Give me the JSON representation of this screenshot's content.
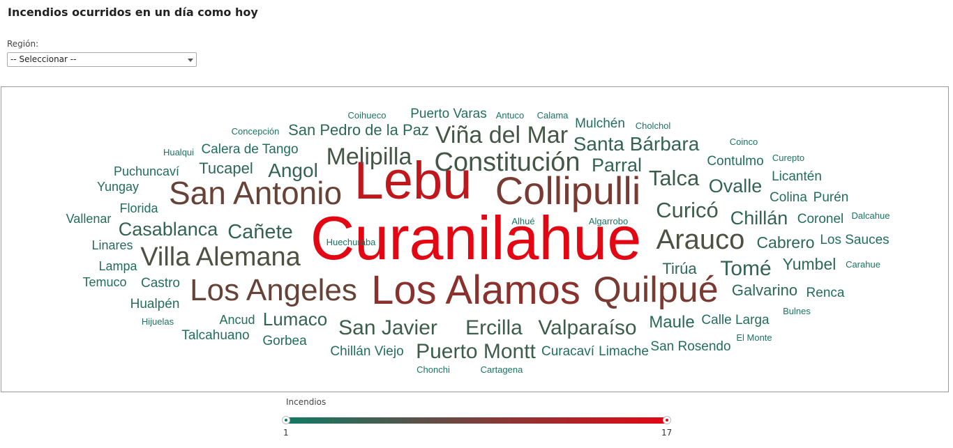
{
  "page": {
    "title": "Incendios ocurridos en un día como hoy"
  },
  "filter": {
    "label": "Región:",
    "selected": "-- Seleccionar --"
  },
  "legend": {
    "title": "Incendios",
    "min": "1",
    "max": "17",
    "color_low": "#117a65",
    "color_high": "#e30613"
  },
  "chart_data": {
    "type": "wordcloud",
    "value_range": [
      1,
      17
    ],
    "words": [
      {
        "text": "Curanilahue",
        "value": 17
      },
      {
        "text": "Lebu",
        "value": 15
      },
      {
        "text": "Los Alamos",
        "value": 12
      },
      {
        "text": "Collipulli",
        "value": 11
      },
      {
        "text": "Quilpué",
        "value": 11
      },
      {
        "text": "San Antonio",
        "value": 10
      },
      {
        "text": "Los Angeles",
        "value": 10
      },
      {
        "text": "Villa Alemana",
        "value": 8
      },
      {
        "text": "Arauco",
        "value": 8
      },
      {
        "text": "Constitución",
        "value": 7
      },
      {
        "text": "Melipilla",
        "value": 7
      },
      {
        "text": "Viña del Mar",
        "value": 7
      },
      {
        "text": "Curicó",
        "value": 6
      },
      {
        "text": "Talca",
        "value": 6
      },
      {
        "text": "Puerto Montt",
        "value": 6
      },
      {
        "text": "Valparaíso",
        "value": 6
      },
      {
        "text": "Ercilla",
        "value": 6
      },
      {
        "text": "San Javier",
        "value": 6
      },
      {
        "text": "Casablanca",
        "value": 5
      },
      {
        "text": "Cañete",
        "value": 5
      },
      {
        "text": "Tomé",
        "value": 5
      },
      {
        "text": "Chillán",
        "value": 5
      },
      {
        "text": "Ovalle",
        "value": 5
      },
      {
        "text": "Santa Bárbara",
        "value": 5
      },
      {
        "text": "Parral",
        "value": 5
      },
      {
        "text": "Angol",
        "value": 5
      },
      {
        "text": "Lumaco",
        "value": 5
      },
      {
        "text": "Maule",
        "value": 4
      },
      {
        "text": "Tirúa",
        "value": 4
      },
      {
        "text": "Yumbel",
        "value": 4
      },
      {
        "text": "Cabrero",
        "value": 4
      },
      {
        "text": "Galvarino",
        "value": 4
      },
      {
        "text": "Tucapel",
        "value": 4
      },
      {
        "text": "San Pedro de la Paz",
        "value": 4
      },
      {
        "text": "Castro",
        "value": 3
      },
      {
        "text": "Calera de Tango",
        "value": 3
      },
      {
        "text": "Puerto Varas",
        "value": 3
      },
      {
        "text": "Mulchén",
        "value": 3
      },
      {
        "text": "Contulmo",
        "value": 3
      },
      {
        "text": "Licantén",
        "value": 3
      },
      {
        "text": "Colina",
        "value": 3
      },
      {
        "text": "Purén",
        "value": 3
      },
      {
        "text": "Coronel",
        "value": 3
      },
      {
        "text": "Los Sauces",
        "value": 3
      },
      {
        "text": "Renca",
        "value": 3
      },
      {
        "text": "Calle Larga",
        "value": 3
      },
      {
        "text": "San Rosendo",
        "value": 3
      },
      {
        "text": "Limache",
        "value": 3
      },
      {
        "text": "Curacaví",
        "value": 3
      },
      {
        "text": "Chillán Viejo",
        "value": 3
      },
      {
        "text": "Gorbea",
        "value": 3
      },
      {
        "text": "Talcahuano",
        "value": 3
      },
      {
        "text": "Ancud",
        "value": 3
      },
      {
        "text": "Hualpén",
        "value": 3
      },
      {
        "text": "Temuco",
        "value": 3
      },
      {
        "text": "Lampa",
        "value": 3
      },
      {
        "text": "Linares",
        "value": 3
      },
      {
        "text": "Vallenar",
        "value": 3
      },
      {
        "text": "Florida",
        "value": 3
      },
      {
        "text": "Yungay",
        "value": 3
      },
      {
        "text": "Puchuncaví",
        "value": 3
      },
      {
        "text": "Hualqui",
        "value": 2
      },
      {
        "text": "Concepción",
        "value": 2
      },
      {
        "text": "Coihueco",
        "value": 2
      },
      {
        "text": "Antuco",
        "value": 2
      },
      {
        "text": "Calama",
        "value": 2
      },
      {
        "text": "Cholchol",
        "value": 2
      },
      {
        "text": "Coinco",
        "value": 2
      },
      {
        "text": "Curepto",
        "value": 2
      },
      {
        "text": "Dalcahue",
        "value": 2
      },
      {
        "text": "Carahue",
        "value": 2
      },
      {
        "text": "Bulnes",
        "value": 2
      },
      {
        "text": "El Monte",
        "value": 2
      },
      {
        "text": "Chonchi",
        "value": 2
      },
      {
        "text": "Cartagena",
        "value": 2
      },
      {
        "text": "Hijuelas",
        "value": 2
      },
      {
        "text": "Huechuraba",
        "value": 2
      },
      {
        "text": "Alhué",
        "value": 2
      },
      {
        "text": "Algarrobo",
        "value": 2
      }
    ]
  }
}
